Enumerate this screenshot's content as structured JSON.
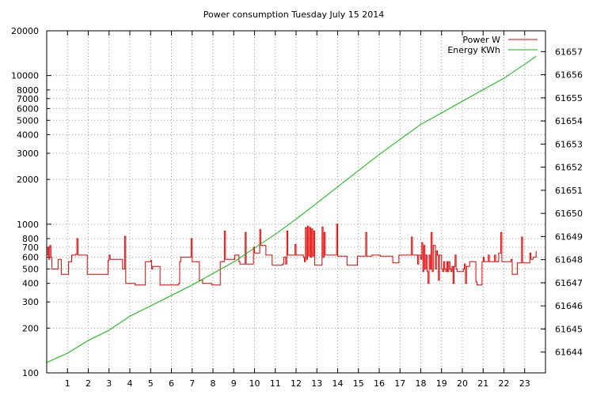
{
  "chart_data": {
    "type": "line",
    "title": "Power consumption Tuesday July 15 2014",
    "xlabel": "",
    "ylabel": "",
    "x_range": [
      0,
      24
    ],
    "x_ticks": [
      "1",
      "2",
      "3",
      "4",
      "5",
      "6",
      "7",
      "8",
      "9",
      "10",
      "11",
      "12",
      "13",
      "14",
      "15",
      "16",
      "17",
      "18",
      "19",
      "20",
      "21",
      "22",
      "23"
    ],
    "y_left": {
      "scale": "log",
      "range": [
        100,
        20000
      ],
      "ticks": [
        "100",
        "200",
        "300",
        "400",
        "500",
        "600",
        "700",
        "800",
        "1000",
        "2000",
        "3000",
        "4000",
        "5000",
        "6000",
        "7000",
        "8000",
        "10000",
        "20000"
      ]
    },
    "y_right": {
      "scale": "linear",
      "range": [
        61643.1,
        61657.9
      ],
      "ticks": [
        "61644",
        "61645",
        "61646",
        "61647",
        "61648",
        "61649",
        "61650",
        "61651",
        "61652",
        "61653",
        "61654",
        "61655",
        "61656",
        "61657"
      ]
    },
    "grid": true,
    "legend_position": "top-right",
    "colors": {
      "power": "#e00000",
      "energy": "#00bb00"
    },
    "series": [
      {
        "name": "Power W",
        "axis": "left",
        "color": "#e00000",
        "points": [
          [
            0.0,
            620
          ],
          [
            0.05,
            700
          ],
          [
            0.1,
            580
          ],
          [
            0.15,
            720
          ],
          [
            0.2,
            600
          ],
          [
            0.25,
            500
          ],
          [
            0.5,
            500
          ],
          [
            0.55,
            580
          ],
          [
            0.6,
            580
          ],
          [
            0.7,
            460
          ],
          [
            1.0,
            460
          ],
          [
            1.05,
            560
          ],
          [
            1.2,
            620
          ],
          [
            1.4,
            630
          ],
          [
            1.45,
            800
          ],
          [
            1.5,
            620
          ],
          [
            1.9,
            620
          ],
          [
            1.95,
            460
          ],
          [
            2.2,
            460
          ],
          [
            2.25,
            460
          ],
          [
            2.9,
            460
          ],
          [
            2.95,
            570
          ],
          [
            3.0,
            620
          ],
          [
            3.05,
            580
          ],
          [
            3.6,
            580
          ],
          [
            3.65,
            500
          ],
          [
            3.7,
            500
          ],
          [
            3.75,
            830
          ],
          [
            3.8,
            400
          ],
          [
            4.2,
            400
          ],
          [
            4.25,
            390
          ],
          [
            4.7,
            390
          ],
          [
            4.75,
            560
          ],
          [
            5.0,
            570
          ],
          [
            5.05,
            500
          ],
          [
            5.1,
            520
          ],
          [
            5.4,
            520
          ],
          [
            5.45,
            390
          ],
          [
            6.3,
            390
          ],
          [
            6.35,
            400
          ],
          [
            6.4,
            560
          ],
          [
            6.45,
            600
          ],
          [
            6.9,
            600
          ],
          [
            6.95,
            800
          ],
          [
            7.0,
            560
          ],
          [
            7.3,
            560
          ],
          [
            7.35,
            420
          ],
          [
            7.5,
            400
          ],
          [
            7.9,
            400
          ],
          [
            7.95,
            390
          ],
          [
            8.3,
            390
          ],
          [
            8.35,
            560
          ],
          [
            8.5,
            560
          ],
          [
            8.55,
            900
          ],
          [
            8.6,
            580
          ],
          [
            9.0,
            580
          ],
          [
            9.05,
            620
          ],
          [
            9.2,
            620
          ],
          [
            9.25,
            560
          ],
          [
            9.3,
            540
          ],
          [
            9.5,
            540
          ],
          [
            9.55,
            880
          ],
          [
            9.6,
            540
          ],
          [
            9.9,
            540
          ],
          [
            9.95,
            700
          ],
          [
            10.0,
            640
          ],
          [
            10.2,
            640
          ],
          [
            10.25,
            920
          ],
          [
            10.3,
            720
          ],
          [
            10.5,
            720
          ],
          [
            10.55,
            620
          ],
          [
            10.8,
            620
          ],
          [
            10.85,
            530
          ],
          [
            11.3,
            530
          ],
          [
            11.35,
            540
          ],
          [
            11.4,
            600
          ],
          [
            11.5,
            540
          ],
          [
            11.55,
            900
          ],
          [
            11.6,
            620
          ],
          [
            11.9,
            620
          ],
          [
            11.95,
            730
          ],
          [
            12.0,
            620
          ],
          [
            12.3,
            620
          ],
          [
            12.35,
            600
          ],
          [
            12.4,
            560
          ],
          [
            12.45,
            950
          ],
          [
            12.5,
            580
          ],
          [
            12.55,
            970
          ],
          [
            12.6,
            610
          ],
          [
            12.65,
            950
          ],
          [
            12.7,
            600
          ],
          [
            12.75,
            930
          ],
          [
            12.8,
            610
          ],
          [
            12.85,
            900
          ],
          [
            12.9,
            530
          ],
          [
            13.2,
            530
          ],
          [
            13.25,
            960
          ],
          [
            13.3,
            600
          ],
          [
            13.35,
            880
          ],
          [
            13.4,
            620
          ],
          [
            13.5,
            620
          ],
          [
            13.55,
            620
          ],
          [
            13.9,
            620
          ],
          [
            13.95,
            1000
          ],
          [
            14.0,
            610
          ],
          [
            14.4,
            610
          ],
          [
            14.45,
            530
          ],
          [
            14.9,
            530
          ],
          [
            14.95,
            610
          ],
          [
            15.3,
            610
          ],
          [
            15.35,
            880
          ],
          [
            15.4,
            610
          ],
          [
            15.6,
            610
          ],
          [
            15.65,
            620
          ],
          [
            16.0,
            620
          ],
          [
            16.05,
            610
          ],
          [
            16.6,
            610
          ],
          [
            16.65,
            550
          ],
          [
            16.9,
            550
          ],
          [
            16.95,
            620
          ],
          [
            17.5,
            620
          ],
          [
            17.55,
            820
          ],
          [
            17.6,
            620
          ],
          [
            17.8,
            620
          ],
          [
            17.85,
            540
          ],
          [
            17.9,
            620
          ],
          [
            18.0,
            580
          ],
          [
            18.05,
            750
          ],
          [
            18.1,
            480
          ],
          [
            18.15,
            720
          ],
          [
            18.2,
            500
          ],
          [
            18.25,
            620
          ],
          [
            18.3,
            480
          ],
          [
            18.35,
            400
          ],
          [
            18.4,
            620
          ],
          [
            18.45,
            500
          ],
          [
            18.5,
            880
          ],
          [
            18.55,
            480
          ],
          [
            18.6,
            720
          ],
          [
            18.7,
            500
          ],
          [
            18.75,
            660
          ],
          [
            18.8,
            620
          ],
          [
            18.85,
            420
          ],
          [
            18.9,
            620
          ],
          [
            19.0,
            500
          ],
          [
            19.05,
            480
          ],
          [
            19.1,
            560
          ],
          [
            19.15,
            500
          ],
          [
            19.2,
            480
          ],
          [
            19.25,
            560
          ],
          [
            19.3,
            480
          ],
          [
            19.35,
            560
          ],
          [
            19.4,
            500
          ],
          [
            19.45,
            480
          ],
          [
            19.5,
            520
          ],
          [
            19.55,
            400
          ],
          [
            19.6,
            520
          ],
          [
            19.65,
            620
          ],
          [
            19.7,
            500
          ],
          [
            19.75,
            480
          ],
          [
            20.0,
            480
          ],
          [
            20.05,
            500
          ],
          [
            20.1,
            540
          ],
          [
            20.15,
            400
          ],
          [
            20.2,
            520
          ],
          [
            20.3,
            520
          ],
          [
            20.35,
            560
          ],
          [
            20.6,
            560
          ],
          [
            20.65,
            410
          ],
          [
            20.7,
            390
          ],
          [
            20.9,
            390
          ],
          [
            20.95,
            560
          ],
          [
            21.0,
            600
          ],
          [
            21.05,
            560
          ],
          [
            21.2,
            560
          ],
          [
            21.25,
            620
          ],
          [
            21.3,
            560
          ],
          [
            21.5,
            560
          ],
          [
            21.55,
            620
          ],
          [
            21.6,
            560
          ],
          [
            21.7,
            560
          ],
          [
            21.75,
            640
          ],
          [
            21.8,
            640
          ],
          [
            21.85,
            880
          ],
          [
            21.9,
            560
          ],
          [
            22.3,
            560
          ],
          [
            22.35,
            580
          ],
          [
            22.4,
            460
          ],
          [
            22.6,
            460
          ],
          [
            22.65,
            550
          ],
          [
            22.8,
            550
          ],
          [
            22.85,
            820
          ],
          [
            22.9,
            550
          ],
          [
            23.2,
            550
          ],
          [
            23.25,
            640
          ],
          [
            23.3,
            580
          ],
          [
            23.4,
            600
          ],
          [
            23.5,
            600
          ],
          [
            23.55,
            660
          ]
        ]
      },
      {
        "name": "Energy KWh",
        "axis": "right",
        "color": "#00bb00",
        "points": [
          [
            0.0,
            61643.55
          ],
          [
            1.0,
            61643.95
          ],
          [
            2.0,
            61644.5
          ],
          [
            3.0,
            61644.95
          ],
          [
            4.0,
            61645.55
          ],
          [
            5.0,
            61646.0
          ],
          [
            6.0,
            61646.45
          ],
          [
            7.0,
            61646.9
          ],
          [
            8.0,
            61647.4
          ],
          [
            9.0,
            61647.9
          ],
          [
            10.0,
            61648.5
          ],
          [
            11.0,
            61649.1
          ],
          [
            12.0,
            61649.75
          ],
          [
            13.0,
            61650.45
          ],
          [
            14.0,
            61651.15
          ],
          [
            15.0,
            61651.85
          ],
          [
            16.0,
            61652.55
          ],
          [
            17.0,
            61653.2
          ],
          [
            18.0,
            61653.85
          ],
          [
            19.0,
            61654.35
          ],
          [
            20.0,
            61654.85
          ],
          [
            21.0,
            61655.35
          ],
          [
            22.0,
            61655.85
          ],
          [
            23.0,
            61656.45
          ],
          [
            23.55,
            61656.8
          ]
        ]
      }
    ]
  }
}
